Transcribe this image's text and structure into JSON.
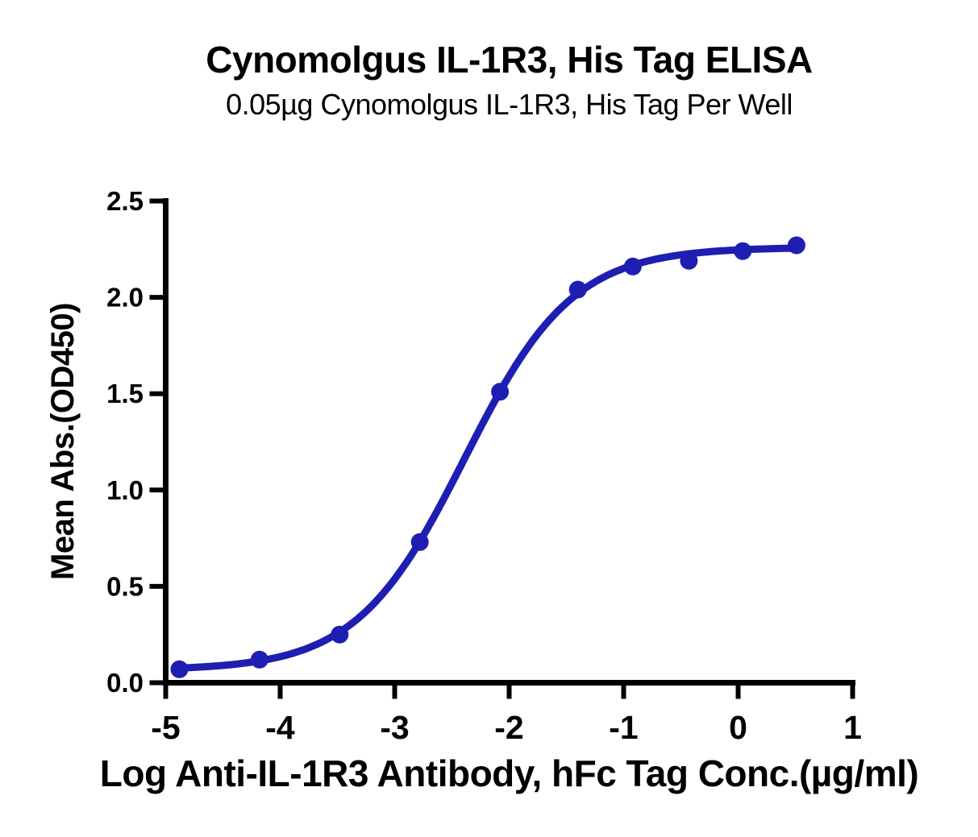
{
  "page": {
    "background_color": "#ffffff",
    "text_color": "#000000"
  },
  "chart_data": {
    "type": "line",
    "title": "Cynomolgus IL-1R3, His Tag ELISA",
    "subtitle": "0.05µg Cynomolgus IL-1R3, His Tag Per Well",
    "xlabel": "Log Anti-IL-1R3 Antibody, hFc Tag Conc.(µg/ml)",
    "ylabel": "Mean Abs.(OD450)",
    "xlim": [
      -5,
      1
    ],
    "ylim": [
      0,
      2.5
    ],
    "x_ticks": [
      -5,
      -4,
      -3,
      -2,
      -1,
      0,
      1
    ],
    "x_tick_labels": [
      "-5",
      "-4",
      "-3",
      "-2",
      "-1",
      "0",
      "1"
    ],
    "y_ticks": [
      0.0,
      0.5,
      1.0,
      1.5,
      2.0,
      2.5
    ],
    "y_tick_labels": [
      "0.0",
      "0.5",
      "1.0",
      "1.5",
      "2.0",
      "2.5"
    ],
    "grid": false,
    "legend": "none",
    "axis_color": "#000000",
    "series": [
      {
        "color": "#1E1EB2",
        "marker": "circle",
        "x": [
          -4.88,
          -4.18,
          -3.48,
          -2.78,
          -2.08,
          -1.4,
          -0.92,
          -0.43,
          0.04,
          0.51
        ],
        "y": [
          0.07,
          0.12,
          0.25,
          0.73,
          1.51,
          2.04,
          2.16,
          2.19,
          2.24,
          2.27
        ]
      }
    ],
    "fit_curve": {
      "model": "4PL",
      "bottom": 0.065,
      "top": 2.26,
      "hill_slope": 0.92,
      "log_ec50": -2.39,
      "x_start": -4.88,
      "x_end": 0.51
    }
  }
}
